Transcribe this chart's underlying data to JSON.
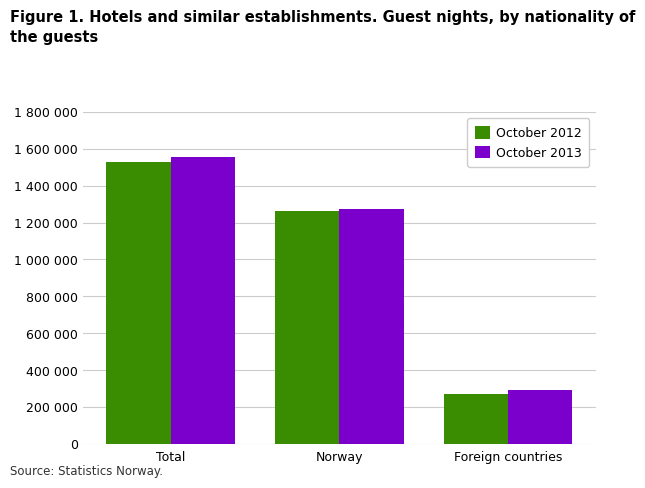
{
  "title": "Figure 1. Hotels and similar establishments. Guest nights, by nationality of\nthe guests",
  "categories": [
    "Total",
    "Norway",
    "Foreign countries"
  ],
  "series": [
    {
      "label": "October 2012",
      "color": "#3a8c00",
      "values": [
        1527000,
        1262000,
        272000
      ]
    },
    {
      "label": "October 2013",
      "color": "#7b00cc",
      "values": [
        1556000,
        1272000,
        292000
      ]
    }
  ],
  "ylim": [
    0,
    1800000
  ],
  "ytick_step": 200000,
  "source": "Source: Statistics Norway.",
  "background_color": "#ffffff",
  "plot_bg_color": "#ffffff",
  "grid_color": "#cccccc",
  "bar_width": 0.38,
  "legend_loc": "upper right",
  "title_fontsize": 10.5,
  "axis_fontsize": 9,
  "legend_fontsize": 9,
  "source_fontsize": 8.5
}
